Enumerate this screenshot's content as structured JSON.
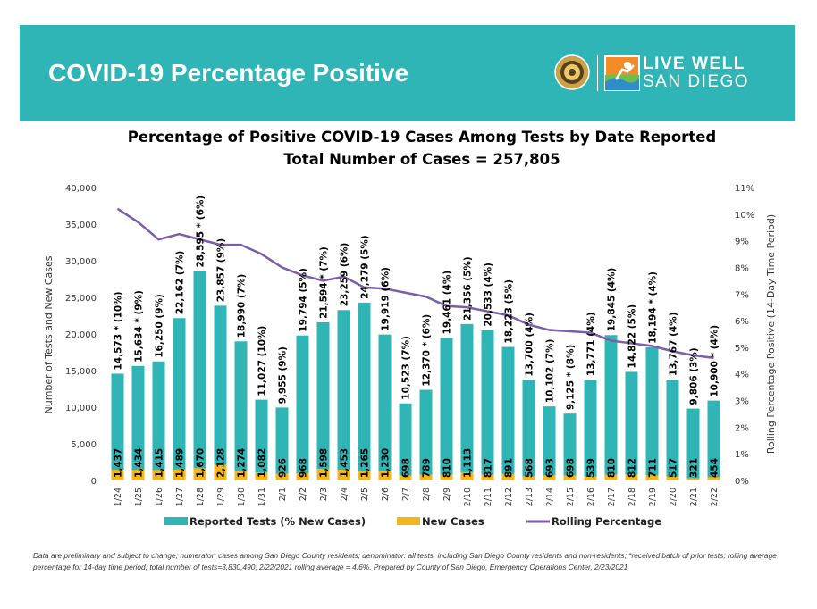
{
  "header": {
    "title": "COVID-19 Percentage Positive",
    "logo_line1": "LIVE WELL",
    "logo_line2": "SAN DIEGO"
  },
  "colors": {
    "banner": "#2fb5b5",
    "bars": "#2fb5b5",
    "new_cases": "#f5b51c",
    "rolling_line": "#7b5ea7",
    "seal": "#c9a24a",
    "logo_orange": "#f28c28"
  },
  "chart_data": {
    "type": "bar",
    "title": "Percentage of Positive COVID-19 Cases Among Tests by Date Reported",
    "subtitle": "Total Number of Cases = 257,805",
    "ylabel": "Number of Tests and New Cases",
    "y2label": "Rolling Percentage Positive (14-Day Time Period)",
    "ylim": [
      0,
      40000
    ],
    "y2lim": [
      0,
      11
    ],
    "yticks": [
      "0",
      "5,000",
      "10,000",
      "15,000",
      "20,000",
      "25,000",
      "30,000",
      "35,000",
      "40,000"
    ],
    "y2ticks": [
      "0%",
      "1%",
      "2%",
      "3%",
      "4%",
      "5%",
      "6%",
      "7%",
      "8%",
      "9%",
      "10%",
      "11%"
    ],
    "grid": false,
    "legend_position": "bottom",
    "categories": [
      "1/24",
      "1/25",
      "1/26",
      "1/27",
      "1/28",
      "1/29",
      "1/30",
      "1/31",
      "2/1",
      "2/2",
      "2/3",
      "2/4",
      "2/5",
      "2/6",
      "2/7",
      "2/8",
      "2/9",
      "2/10",
      "2/11",
      "2/12",
      "2/13",
      "2/14",
      "2/15",
      "2/16",
      "2/17",
      "2/18",
      "2/19",
      "2/20",
      "2/21",
      "2/22"
    ],
    "series": [
      {
        "name": "Reported Tests (% New Cases)",
        "type": "bar",
        "values": [
          14573,
          15634,
          16250,
          22162,
          28595,
          23857,
          18990,
          11027,
          9955,
          19794,
          21594,
          23259,
          24279,
          19919,
          10523,
          12370,
          19461,
          21356,
          20533,
          18223,
          13700,
          10102,
          9125,
          13771,
          19845,
          14822,
          18194,
          13767,
          9806,
          10900
        ],
        "labels": [
          "14,573 * (10%)",
          "15,634 * (9%)",
          "16,250 (9%)",
          "22,162 (7%)",
          "28,595 * (6%)",
          "23,857 (9%)",
          "18,990 (7%)",
          "11,027 (10%)",
          "9,955 (9%)",
          "19,794 (5%)",
          "21,594 * (7%)",
          "23,259 (6%)",
          "24,279 (5%)",
          "19,919 (6%)",
          "10,523 (7%)",
          "12,370 * (6%)",
          "19,461 (4%)",
          "21,356 (5%)",
          "20,533 (4%)",
          "18,223 (5%)",
          "13,700 (4%)",
          "10,102 (7%)",
          "9,125 * (8%)",
          "13,771 (4%)",
          "19,845 (4%)",
          "14,822 (5%)",
          "18,194 * (4%)",
          "13,767 (4%)",
          "9,806 (3%)",
          "10,900 * (4%)"
        ]
      },
      {
        "name": "New Cases",
        "type": "bar",
        "values": [
          1437,
          1434,
          1415,
          1489,
          1670,
          2128,
          1274,
          1082,
          926,
          968,
          1598,
          1453,
          1265,
          1230,
          698,
          789,
          810,
          1113,
          817,
          891,
          568,
          693,
          698,
          539,
          810,
          812,
          711,
          517,
          321,
          454
        ],
        "labels": [
          "1,437",
          "1,434",
          "1,415",
          "1,489",
          "1,670",
          "2,128",
          "1,274",
          "1,082",
          "926",
          "968",
          "1,598",
          "1,453",
          "1,265",
          "1,230",
          "698",
          "789",
          "810",
          "1,113",
          "817",
          "891",
          "568",
          "693",
          "698",
          "539",
          "810",
          "812",
          "711",
          "517",
          "321",
          "454"
        ]
      },
      {
        "name": "Rolling Percentage",
        "type": "line",
        "axis": "right",
        "values": [
          10.2,
          9.7,
          9.05,
          9.25,
          9.05,
          8.85,
          8.85,
          8.5,
          8.0,
          7.7,
          7.5,
          7.65,
          7.25,
          7.2,
          7.05,
          6.9,
          6.55,
          6.5,
          6.35,
          6.2,
          5.85,
          5.65,
          5.6,
          5.55,
          5.25,
          5.15,
          5.05,
          4.85,
          4.7,
          4.6
        ]
      }
    ]
  },
  "footnote": "Data are preliminary and subject to change; numerator: cases among San Diego County residents; denominator: all tests, including San Diego County residents and non-residents; *received batch of prior tests; rolling average percentage for 14-day time period; total number of tests=3,830,490; 2/22/2021 rolling average = 4.6%. Prepared by County of San Diego, Emergency Operations Center, 2/23/2021"
}
